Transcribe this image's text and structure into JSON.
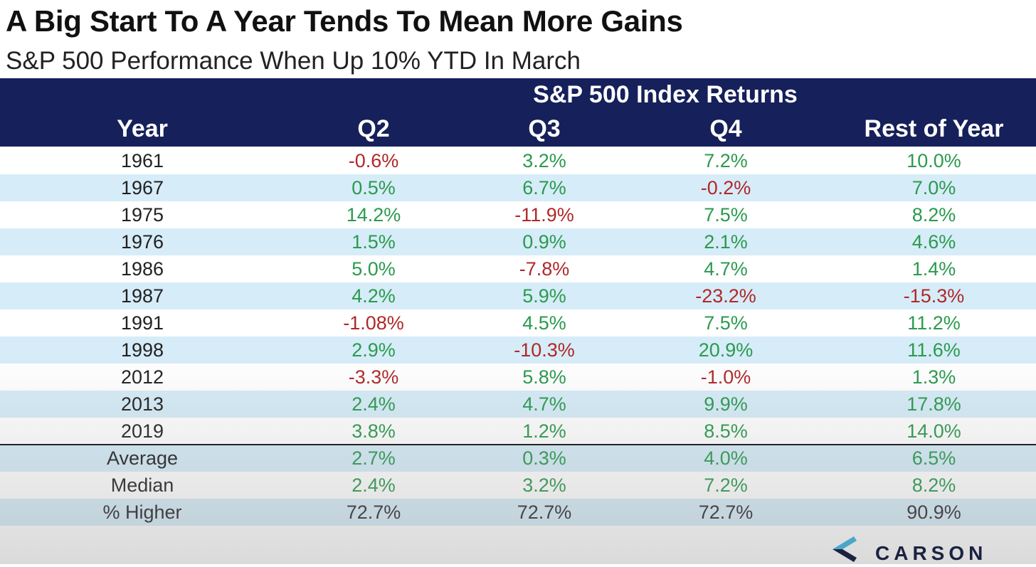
{
  "title": "A Big Start To A Year Tends To Mean More Gains",
  "subtitle": "S&P 500 Performance When Up 10% YTD In March",
  "brand": "CARSON",
  "colors": {
    "header_bg": "#16205a",
    "positive": "#2b9a4e",
    "negative": "#b02828",
    "alt_row": "#d6ecf8"
  },
  "chart_data": {
    "type": "table",
    "title": "A Big Start To A Year Tends To Mean More Gains",
    "subtitle": "S&P 500 Performance When Up 10% YTD In March",
    "super_header": "S&P 500 Index Returns",
    "columns": [
      "Year",
      "Q2",
      "Q3",
      "Q4",
      "Rest of Year"
    ],
    "rows": [
      [
        "1961",
        "-0.6%",
        "3.2%",
        "7.2%",
        "10.0%"
      ],
      [
        "1967",
        "0.5%",
        "6.7%",
        "-0.2%",
        "7.0%"
      ],
      [
        "1975",
        "14.2%",
        "-11.9%",
        "7.5%",
        "8.2%"
      ],
      [
        "1976",
        "1.5%",
        "0.9%",
        "2.1%",
        "4.6%"
      ],
      [
        "1986",
        "5.0%",
        "-7.8%",
        "4.7%",
        "1.4%"
      ],
      [
        "1987",
        "4.2%",
        "5.9%",
        "-23.2%",
        "-15.3%"
      ],
      [
        "1991",
        "-1.08%",
        "4.5%",
        "7.5%",
        "11.2%"
      ],
      [
        "1998",
        "2.9%",
        "-10.3%",
        "20.9%",
        "11.6%"
      ],
      [
        "2012",
        "-3.3%",
        "5.8%",
        "-1.0%",
        "1.3%"
      ],
      [
        "2013",
        "2.4%",
        "4.7%",
        "9.9%",
        "17.8%"
      ],
      [
        "2019",
        "3.8%",
        "1.2%",
        "8.5%",
        "14.0%"
      ]
    ],
    "summary_rows": [
      [
        "Average",
        "2.7%",
        "0.3%",
        "4.0%",
        "6.5%"
      ],
      [
        "Median",
        "2.4%",
        "3.2%",
        "7.2%",
        "8.2%"
      ],
      [
        "% Higher",
        "72.7%",
        "72.7%",
        "72.7%",
        "90.9%"
      ]
    ]
  }
}
